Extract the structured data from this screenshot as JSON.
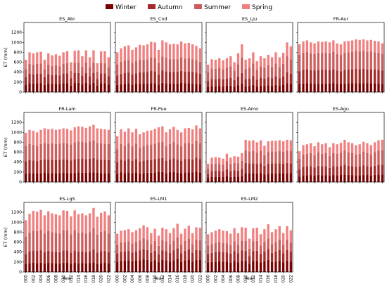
{
  "chart_data": {
    "type": "bar",
    "stacked": true,
    "legend": {
      "placement": "top-center",
      "entries": [
        {
          "name": "Winter",
          "color": "#7a0000"
        },
        {
          "name": "Autumn",
          "color": "#a52a2a"
        },
        {
          "name": "Summer",
          "color": "#cd5c5c"
        },
        {
          "name": "Spring",
          "color": "#f08080"
        }
      ]
    },
    "years": [
      2000,
      2001,
      2002,
      2003,
      2004,
      2005,
      2006,
      2007,
      2008,
      2009,
      2010,
      2011,
      2012,
      2013,
      2014,
      2015,
      2016,
      2017,
      2018,
      2019,
      2020,
      2021,
      2022
    ],
    "x_tick_labels": [
      "2000",
      "2002",
      "2004",
      "2006",
      "2008",
      "2010",
      "2012",
      "2014",
      "2016",
      "2018",
      "2020",
      "2022"
    ],
    "xlabel": "Year",
    "ylabel": "ET (mm)",
    "ylim": [
      0,
      1400
    ],
    "y_ticks": [
      0,
      200,
      400,
      600,
      800,
      1000,
      1200
    ],
    "grid": false,
    "panels": [
      {
        "title": "ES_Abr",
        "totals": [
          650,
          800,
          780,
          800,
          810,
          650,
          780,
          740,
          760,
          730,
          800,
          820,
          600,
          830,
          840,
          720,
          840,
          700,
          840,
          580,
          820,
          820,
          700
        ],
        "fractions": [
          0.22,
          0.24,
          0.25,
          0.29
        ]
      },
      {
        "title": "ES_Cnd",
        "totals": [
          800,
          880,
          920,
          940,
          850,
          900,
          950,
          940,
          960,
          1010,
          1000,
          850,
          1040,
          1000,
          960,
          970,
          960,
          1020,
          980,
          990,
          960,
          930,
          880
        ],
        "fractions": [
          0.18,
          0.24,
          0.27,
          0.31
        ]
      },
      {
        "title": "ES_LJu",
        "totals": [
          550,
          660,
          650,
          680,
          640,
          680,
          720,
          600,
          780,
          960,
          650,
          680,
          800,
          620,
          720,
          680,
          750,
          700,
          800,
          700,
          790,
          1000,
          920
        ],
        "fractions": [
          0.18,
          0.22,
          0.32,
          0.28
        ]
      },
      {
        "title": "FR-Aur",
        "totals": [
          960,
          1020,
          1040,
          1000,
          980,
          1020,
          1010,
          1020,
          1000,
          1040,
          980,
          960,
          1020,
          1030,
          1040,
          1060,
          1050,
          1060,
          1040,
          1050,
          1030,
          1020,
          980
        ],
        "fractions": [
          0.17,
          0.27,
          0.34,
          0.22
        ]
      },
      {
        "title": "FR-Lam",
        "totals": [
          990,
          1050,
          1030,
          1000,
          1050,
          1080,
          1060,
          1070,
          1050,
          1060,
          1080,
          1070,
          1040,
          1100,
          1120,
          1110,
          1090,
          1120,
          1150,
          1080,
          1070,
          1060,
          1050
        ],
        "fractions": [
          0.17,
          0.25,
          0.31,
          0.27
        ]
      },
      {
        "title": "FR-Pue",
        "totals": [
          920,
          1060,
          1010,
          1080,
          1000,
          1070,
          960,
          1000,
          1030,
          1040,
          1070,
          1100,
          1120,
          1000,
          1060,
          1110,
          1050,
          1000,
          1080,
          1090,
          1060,
          1140,
          1080
        ],
        "fractions": [
          0.18,
          0.25,
          0.29,
          0.28
        ]
      },
      {
        "title": "ES-Amo",
        "totals": [
          370,
          490,
          500,
          490,
          470,
          570,
          490,
          520,
          510,
          580,
          850,
          830,
          840,
          800,
          840,
          730,
          820,
          830,
          830,
          840,
          820,
          850,
          840
        ],
        "fractions": [
          0.21,
          0.24,
          0.29,
          0.26
        ]
      },
      {
        "title": "ES-Agu",
        "totals": [
          620,
          740,
          760,
          780,
          720,
          800,
          760,
          780,
          700,
          780,
          760,
          790,
          850,
          800,
          780,
          740,
          760,
          810,
          780,
          740,
          800,
          840,
          850
        ],
        "fractions": [
          0.18,
          0.23,
          0.34,
          0.25
        ]
      },
      {
        "title": "ES-LgS",
        "totals": [
          1040,
          1170,
          1230,
          1210,
          1250,
          1140,
          1220,
          1180,
          1160,
          1140,
          1240,
          1230,
          1120,
          1240,
          1160,
          1180,
          1140,
          1180,
          1290,
          1110,
          1190,
          1220,
          1140
        ],
        "fractions": [
          0.15,
          0.2,
          0.33,
          0.32
        ]
      },
      {
        "title": "ES-LM1",
        "totals": [
          770,
          830,
          840,
          860,
          800,
          840,
          880,
          940,
          900,
          780,
          870,
          730,
          890,
          860,
          780,
          880,
          970,
          770,
          870,
          930,
          780,
          900,
          890
        ],
        "fractions": [
          0.27,
          0.22,
          0.23,
          0.28
        ]
      },
      {
        "title": "ES-LM2",
        "totals": [
          760,
          800,
          830,
          860,
          830,
          820,
          770,
          880,
          780,
          900,
          890,
          670,
          880,
          890,
          760,
          860,
          960,
          800,
          860,
          920,
          780,
          920,
          840
        ],
        "fractions": [
          0.25,
          0.23,
          0.22,
          0.3
        ]
      }
    ]
  }
}
